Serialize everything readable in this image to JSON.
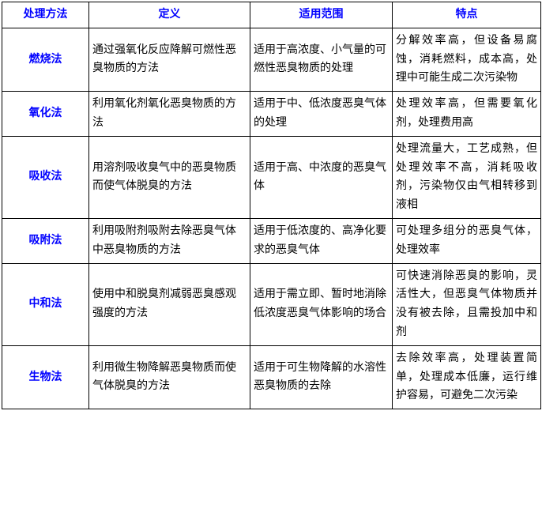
{
  "header_color": "#0000ff",
  "columns": [
    "处理方法",
    "定义",
    "适用范围",
    "特点"
  ],
  "rows": [
    {
      "method": "燃烧法",
      "definition": "通过强氧化反应降解可燃性恶臭物质的方法",
      "scope": "适用于高浓度、小气量的可燃性恶臭物质的处理",
      "feature": "分解效率高，但设备易腐蚀，消耗燃料，成本高，处理中可能生成二次污染物"
    },
    {
      "method": "氧化法",
      "definition": "利用氧化剂氧化恶臭物质的方法",
      "scope": "适用于中、低浓度恶臭气体的处理",
      "feature": "处理效率高，但需要氧化剂，处理费用高"
    },
    {
      "method": "吸收法",
      "definition": "用溶剂吸收臭气中的恶臭物质而使气体脱臭的方法",
      "scope": "适用于高、中浓度的恶臭气体",
      "feature": "处理流量大，工艺成熟，但处理效率不高，消耗吸收剂，污染物仅由气相转移到液相"
    },
    {
      "method": "吸附法",
      "definition": "利用吸附剂吸附去除恶臭气体中恶臭物质的方法",
      "scope": "适用于低浓度的、高净化要求的恶臭气体",
      "feature": "可处理多组分的恶臭气体，处理效率"
    },
    {
      "method": "中和法",
      "definition": "使用中和脱臭剂减弱恶臭感观强度的方法",
      "scope": "适用于需立即、暂时地消除低浓度恶臭气体影响的场合",
      "feature": "可快速消除恶臭的影响，灵活性大，但恶臭气体物质并没有被去除，且需投加中和剂"
    },
    {
      "method": "生物法",
      "definition": "利用微生物降解恶臭物质而使气体脱臭的方法",
      "scope": "适用于可生物降解的水溶性恶臭物质的去除",
      "feature": "去除效率高，处理装置简单，处理成本低廉，运行维护容易，可避免二次污染"
    }
  ]
}
